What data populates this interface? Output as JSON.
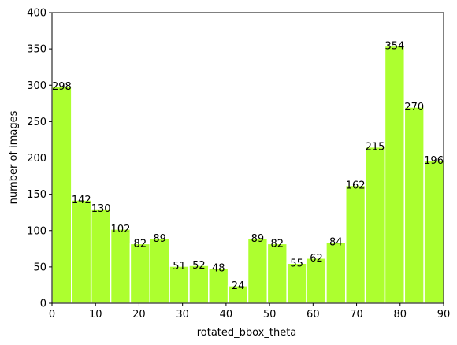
{
  "chart_data": {
    "type": "bar",
    "xlabel": "rotated_bbox_theta",
    "ylabel": "number of images",
    "xlim": [
      0,
      90
    ],
    "ylim": [
      0,
      400
    ],
    "bin_width": 4.5,
    "bins": [
      {
        "x_start": 0,
        "value": 298
      },
      {
        "x_start": 4.5,
        "value": 142
      },
      {
        "x_start": 9,
        "value": 130
      },
      {
        "x_start": 13.5,
        "value": 102
      },
      {
        "x_start": 18,
        "value": 82
      },
      {
        "x_start": 22.5,
        "value": 89
      },
      {
        "x_start": 27,
        "value": 51
      },
      {
        "x_start": 31.5,
        "value": 52
      },
      {
        "x_start": 36,
        "value": 48
      },
      {
        "x_start": 40.5,
        "value": 24
      },
      {
        "x_start": 45,
        "value": 89
      },
      {
        "x_start": 49.5,
        "value": 82
      },
      {
        "x_start": 54,
        "value": 55
      },
      {
        "x_start": 58.5,
        "value": 62
      },
      {
        "x_start": 63,
        "value": 84
      },
      {
        "x_start": 67.5,
        "value": 162
      },
      {
        "x_start": 72,
        "value": 215
      },
      {
        "x_start": 76.5,
        "value": 354
      },
      {
        "x_start": 81,
        "value": 270
      },
      {
        "x_start": 85.5,
        "value": 196
      }
    ],
    "x_ticks": [
      "0",
      "10",
      "20",
      "30",
      "40",
      "50",
      "60",
      "70",
      "80",
      "90"
    ],
    "y_ticks": [
      "0",
      "50",
      "100",
      "150",
      "200",
      "250",
      "300",
      "350",
      "400"
    ],
    "bar_color": "#adff2f",
    "bar_edge_color": "#ffffff",
    "grid": false,
    "legend": "none"
  }
}
